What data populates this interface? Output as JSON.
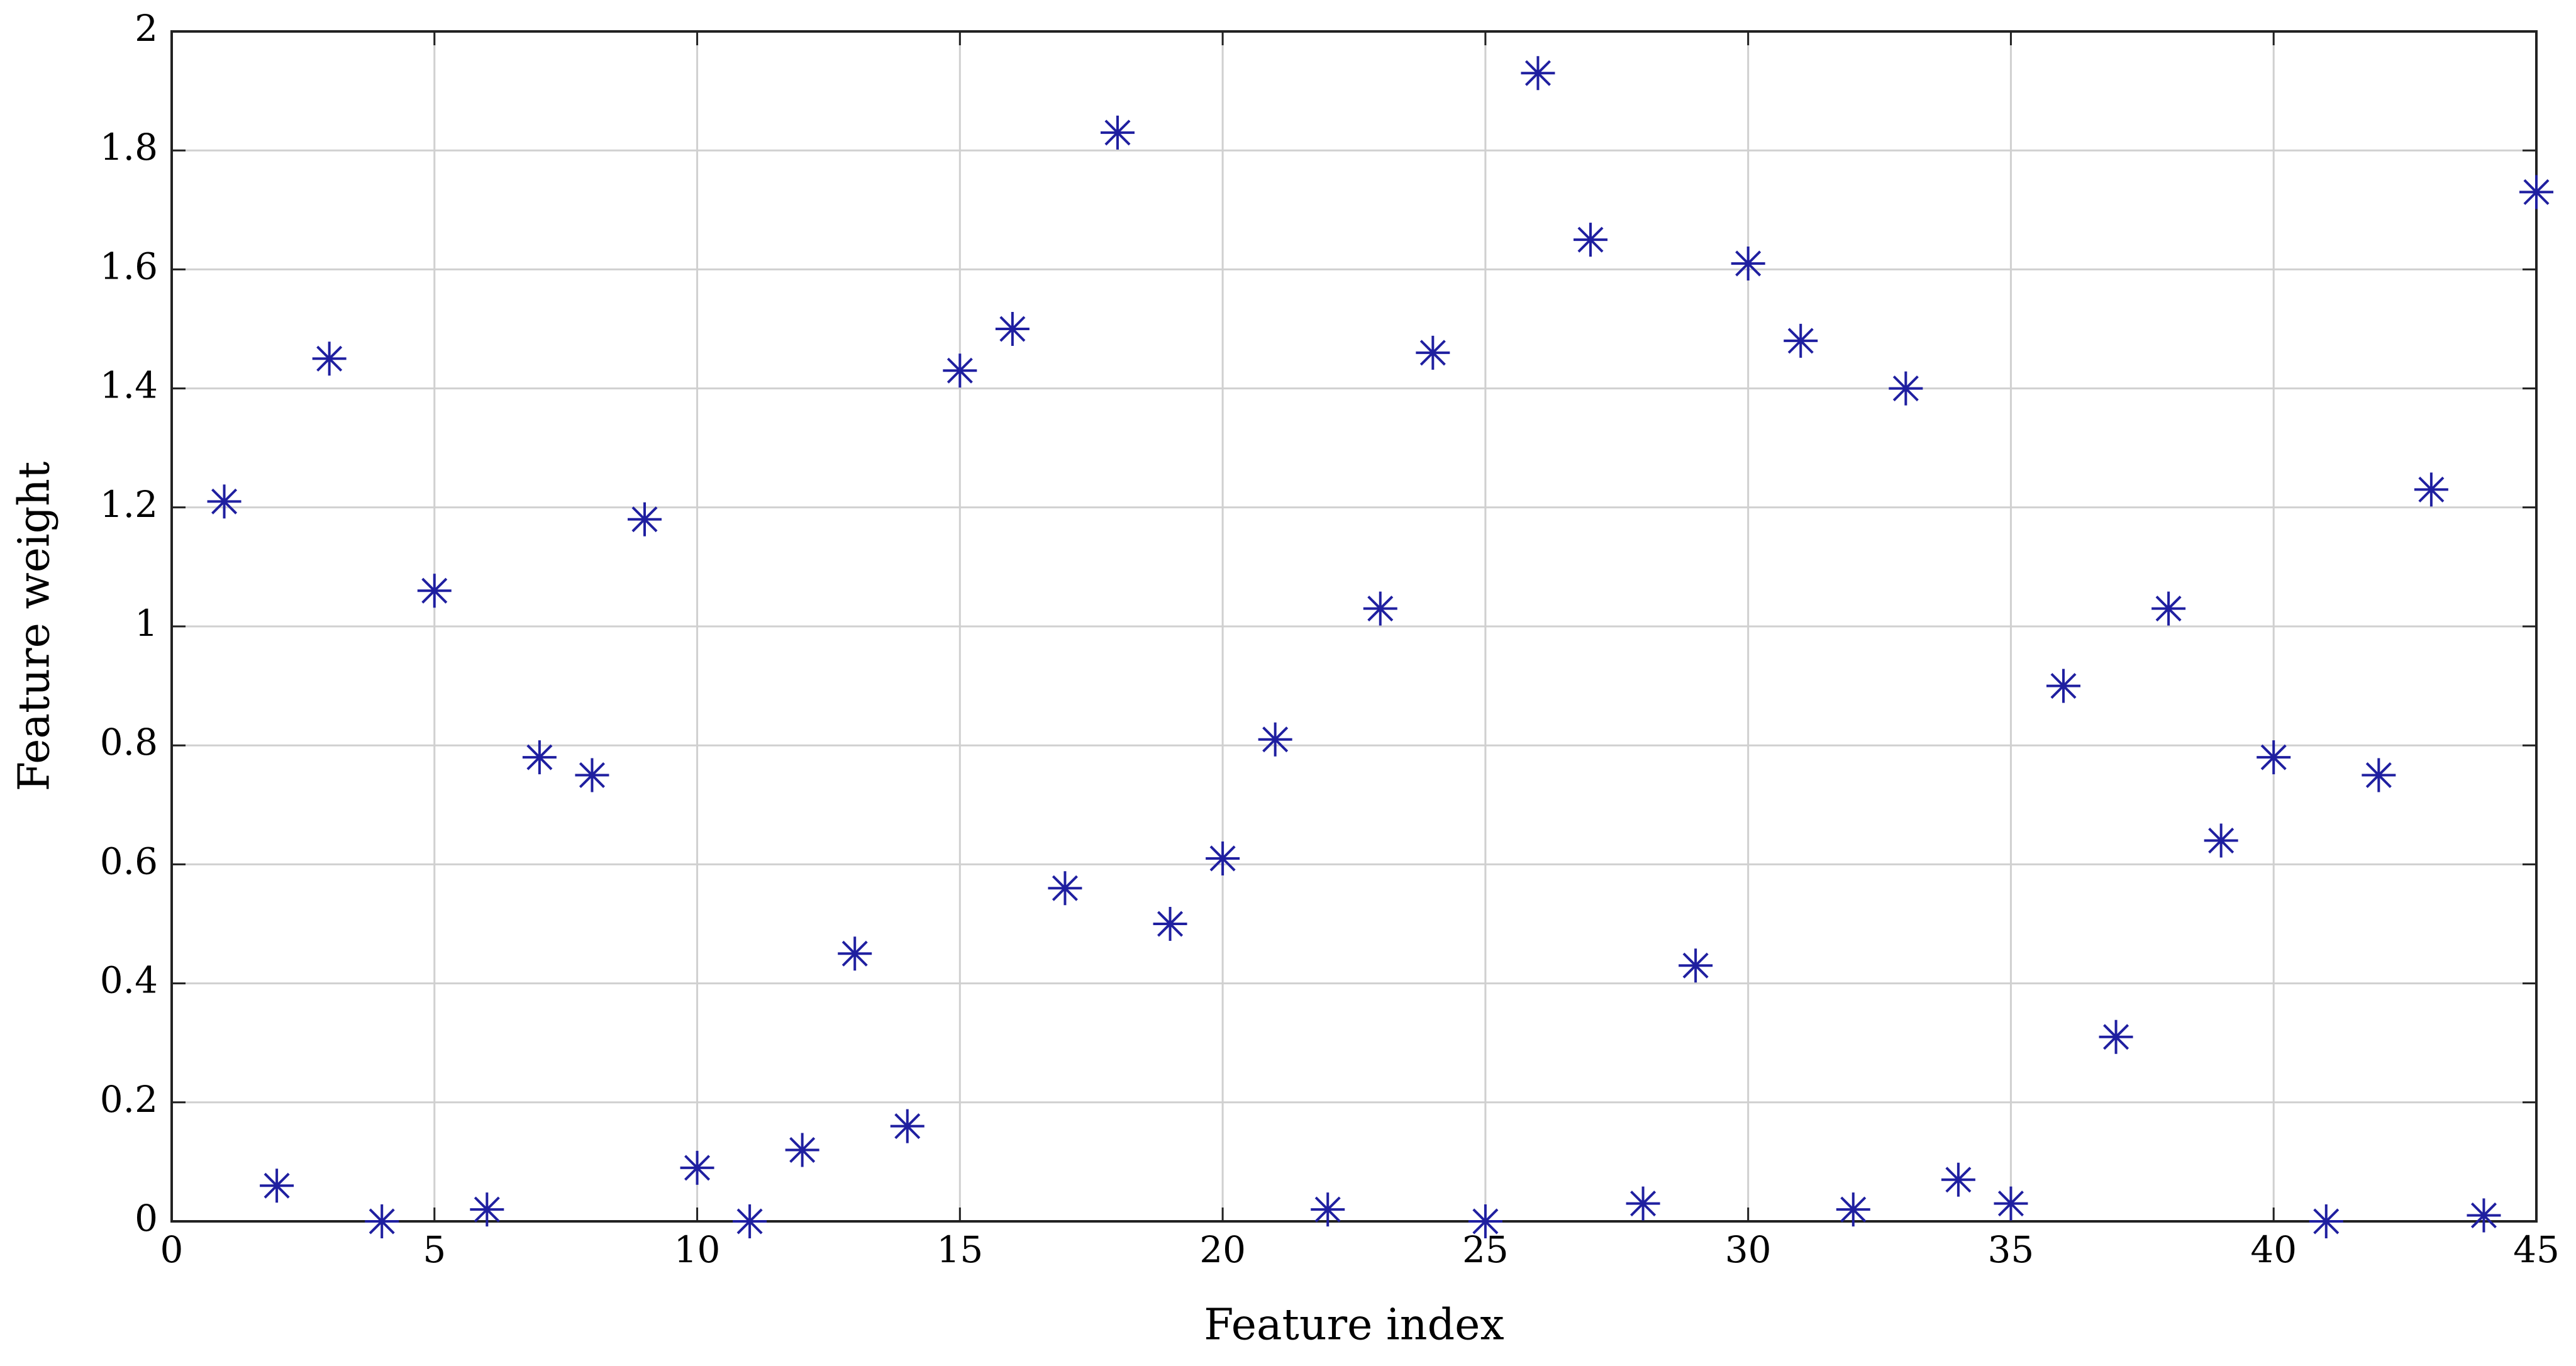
{
  "chart_data": {
    "type": "scatter",
    "xlabel": "Feature index",
    "ylabel": "Feature weight",
    "x": [
      1,
      2,
      3,
      4,
      5,
      6,
      7,
      8,
      9,
      10,
      11,
      12,
      13,
      14,
      15,
      16,
      17,
      18,
      19,
      20,
      21,
      22,
      23,
      24,
      25,
      26,
      27,
      28,
      29,
      30,
      31,
      32,
      33,
      34,
      35,
      36,
      37,
      38,
      39,
      40,
      41,
      42,
      43,
      44,
      45
    ],
    "values": [
      1.21,
      0.06,
      1.45,
      0.0,
      1.06,
      0.02,
      0.78,
      0.75,
      1.18,
      0.09,
      0.0,
      0.12,
      0.45,
      0.16,
      1.43,
      1.5,
      0.56,
      1.83,
      0.5,
      0.61,
      0.81,
      0.02,
      1.03,
      1.46,
      0.0,
      1.93,
      1.65,
      0.03,
      0.43,
      1.61,
      1.48,
      0.02,
      1.4,
      0.07,
      0.03,
      0.9,
      0.31,
      1.03,
      0.64,
      0.78,
      0.0,
      0.75,
      1.23,
      0.01,
      1.73
    ],
    "color": "#1f1fa0",
    "xlim": [
      0,
      45
    ],
    "xticks": [
      0,
      5,
      10,
      15,
      20,
      25,
      30,
      35,
      40,
      45
    ],
    "ylim": [
      0,
      2
    ],
    "yticks": [
      0,
      0.2,
      0.4,
      0.6,
      0.8,
      1,
      1.2,
      1.4,
      1.6,
      1.8,
      2
    ],
    "grid": true
  }
}
